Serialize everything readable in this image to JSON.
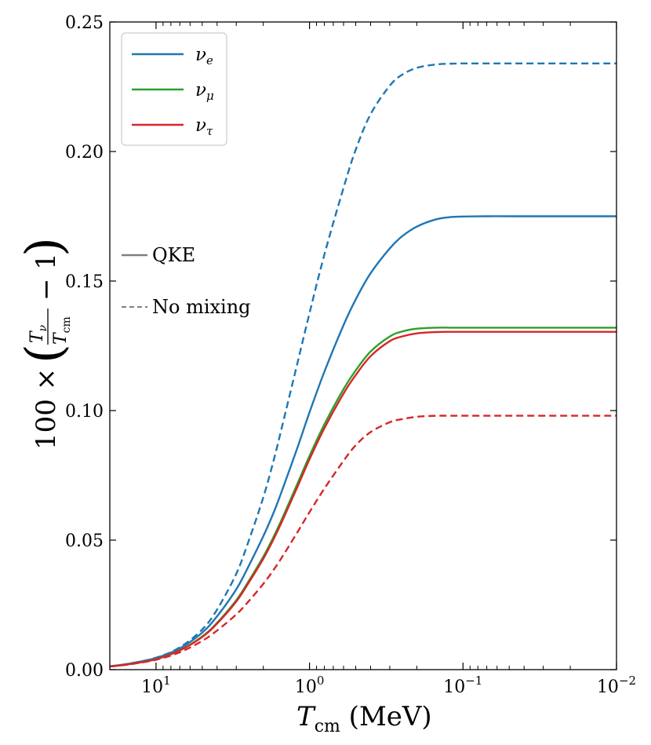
{
  "chart_data": {
    "type": "line",
    "xlabel": "T_cm (MeV)",
    "ylabel": "100 × (T_ν/T_cm − 1)",
    "x_scale": "log",
    "x_reversed": true,
    "xlim": [
      20,
      0.01
    ],
    "ylim": [
      0,
      0.25
    ],
    "x_ticks": [
      {
        "value": 10,
        "label": "10^1"
      },
      {
        "value": 1,
        "label": "10^0"
      },
      {
        "value": 0.1,
        "label": "10^-1"
      },
      {
        "value": 0.01,
        "label": "10^-2"
      }
    ],
    "y_ticks": [
      "0.00",
      "0.05",
      "0.10",
      "0.15",
      "0.20",
      "0.25"
    ],
    "grid": false,
    "legend_position": "top-left",
    "species_legend": [
      {
        "label": "νe",
        "color": "#1f77b4"
      },
      {
        "label": "νμ",
        "color": "#2ca02c"
      },
      {
        "label": "ντ",
        "color": "#d62728"
      }
    ],
    "style_legend": [
      {
        "label": "QKE",
        "style": "solid"
      },
      {
        "label": "No mixing",
        "style": "dashed"
      }
    ],
    "x": [
      20,
      15,
      10,
      7,
      5,
      4,
      3,
      2.5,
      2,
      1.7,
      1.5,
      1.2,
      1.0,
      0.8,
      0.6,
      0.5,
      0.4,
      0.3,
      0.25,
      0.2,
      0.15,
      0.12,
      0.1,
      0.07,
      0.05,
      0.03,
      0.02,
      0.01
    ],
    "series": [
      {
        "name": "νe",
        "style": "solid",
        "color": "#1f77b4",
        "values": [
          0.0013,
          0.0023,
          0.0045,
          0.0082,
          0.0143,
          0.0206,
          0.031,
          0.0398,
          0.0515,
          0.0611,
          0.0696,
          0.0856,
          0.0993,
          0.115,
          0.133,
          0.1429,
          0.153,
          0.1626,
          0.1672,
          0.171,
          0.1738,
          0.1747,
          0.1749,
          0.175,
          0.175,
          0.175,
          0.175,
          0.175
        ]
      },
      {
        "name": "νμ",
        "style": "solid",
        "color": "#2ca02c",
        "values": [
          0.0012,
          0.0021,
          0.0041,
          0.0075,
          0.0128,
          0.0181,
          0.0268,
          0.034,
          0.0436,
          0.0517,
          0.0586,
          0.0717,
          0.0825,
          0.0947,
          0.1083,
          0.1155,
          0.1228,
          0.1286,
          0.1305,
          0.1316,
          0.132,
          0.132,
          0.132,
          0.132,
          0.132,
          0.132,
          0.132,
          0.132
        ]
      },
      {
        "name": "ντ",
        "style": "solid",
        "color": "#d62728",
        "values": [
          0.0012,
          0.0021,
          0.004,
          0.0074,
          0.0126,
          0.0178,
          0.0263,
          0.0334,
          0.0428,
          0.0508,
          0.0576,
          0.0705,
          0.0812,
          0.0932,
          0.1066,
          0.1137,
          0.121,
          0.1268,
          0.1286,
          0.1298,
          0.1303,
          0.1304,
          0.1304,
          0.1304,
          0.1304,
          0.1304,
          0.1304,
          0.1304
        ]
      },
      {
        "name": "νe",
        "style": "dashed",
        "color": "#1f77b4",
        "values": [
          0.0013,
          0.0023,
          0.0046,
          0.0086,
          0.0155,
          0.0232,
          0.037,
          0.0494,
          0.0665,
          0.0815,
          0.0945,
          0.1182,
          0.1376,
          0.1602,
          0.186,
          0.2007,
          0.2144,
          0.2254,
          0.2296,
          0.2323,
          0.2336,
          0.2339,
          0.234,
          0.234,
          0.234,
          0.234,
          0.234,
          0.234
        ]
      },
      {
        "name": "ντ",
        "style": "dashed",
        "color": "#d62728",
        "values": [
          0.0012,
          0.002,
          0.0038,
          0.0067,
          0.0111,
          0.0151,
          0.0213,
          0.0263,
          0.0331,
          0.0388,
          0.0437,
          0.053,
          0.0608,
          0.0699,
          0.0806,
          0.0866,
          0.0917,
          0.0955,
          0.0967,
          0.0976,
          0.098,
          0.098,
          0.098,
          0.098,
          0.098,
          0.098,
          0.098,
          0.098
        ]
      }
    ]
  }
}
